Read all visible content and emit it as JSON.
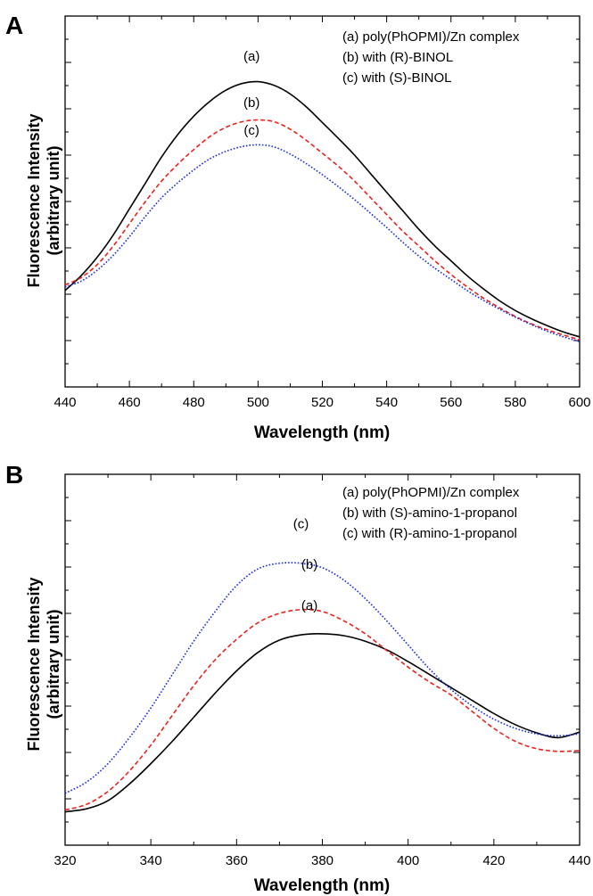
{
  "chart_data": [
    {
      "type": "line",
      "panel_label": "A",
      "xlabel": "Wavelength (nm)",
      "ylabel_line1": "Fluorescence Intensity",
      "ylabel_line2": "(arbitrary unit)",
      "xlim": [
        440,
        600
      ],
      "ylim": [
        0,
        100
      ],
      "xticks": [
        "440",
        "460",
        "480",
        "500",
        "520",
        "540",
        "560",
        "580",
        "600"
      ],
      "grid": false,
      "legend_position": "top-right",
      "legend": [
        "(a) poly(PhOPMI)/Zn complex",
        "(b) with (R)-BINOL",
        "(c) with (S)-BINOL"
      ],
      "series": [
        {
          "key": "a",
          "tag": "(a)",
          "color": "#000000",
          "style": "solid",
          "tag_at": [
            498,
            88
          ],
          "x": [
            440,
            445,
            450,
            455,
            460,
            465,
            470,
            475,
            480,
            485,
            490,
            495,
            500,
            505,
            510,
            515,
            520,
            525,
            530,
            535,
            540,
            545,
            550,
            555,
            560,
            565,
            570,
            575,
            580,
            585,
            590,
            595,
            600
          ],
          "values": [
            26,
            30,
            35,
            41,
            48,
            55,
            62,
            68,
            73,
            77,
            80,
            81.8,
            82.3,
            81.3,
            79,
            75.5,
            71.3,
            67,
            62.5,
            57.5,
            52.5,
            47.5,
            42.5,
            38,
            34,
            30,
            26.5,
            23.3,
            20.6,
            18.4,
            16.5,
            14.8,
            13.5
          ]
        },
        {
          "key": "b",
          "tag": "(b)",
          "color": "#e8231c",
          "style": "dashed",
          "tag_at": [
            498,
            75.5
          ],
          "x": [
            440,
            445,
            450,
            455,
            460,
            465,
            470,
            475,
            480,
            485,
            490,
            495,
            500,
            505,
            510,
            515,
            520,
            525,
            530,
            535,
            540,
            545,
            550,
            555,
            560,
            565,
            570,
            575,
            580,
            585,
            590,
            595,
            600
          ],
          "values": [
            27.5,
            29.5,
            33,
            38,
            44,
            50,
            55.5,
            60,
            64,
            67.5,
            70,
            71.5,
            72,
            71.5,
            69.5,
            66.5,
            63,
            59.5,
            55.5,
            51,
            46.5,
            42,
            38,
            34,
            30.3,
            27,
            24,
            21.4,
            19,
            17,
            15.4,
            14,
            12.7
          ]
        },
        {
          "key": "c",
          "tag": "(c)",
          "color": "#1a2be0",
          "style": "dotted",
          "tag_at": [
            498,
            68
          ],
          "x": [
            440,
            445,
            450,
            455,
            460,
            465,
            470,
            475,
            480,
            485,
            490,
            495,
            500,
            505,
            510,
            515,
            520,
            525,
            530,
            535,
            540,
            545,
            550,
            555,
            560,
            565,
            570,
            575,
            580,
            585,
            590,
            595,
            600
          ],
          "values": [
            27,
            28.5,
            31.5,
            35.5,
            40.5,
            46,
            51,
            55,
            58.5,
            61.5,
            63.5,
            64.8,
            65.3,
            64.7,
            62.8,
            60.2,
            57.2,
            54,
            50.5,
            46.8,
            43,
            39,
            35.3,
            32,
            29,
            26,
            23.4,
            21,
            18.8,
            16.8,
            15,
            13.5,
            12.2
          ]
        }
      ]
    },
    {
      "type": "line",
      "panel_label": "B",
      "xlabel": "Wavelength (nm)",
      "ylabel_line1": "Fluorescence Intensity",
      "ylabel_line2": "(arbitrary unit)",
      "xlim": [
        320,
        440
      ],
      "ylim": [
        0,
        100
      ],
      "xticks": [
        "320",
        "340",
        "360",
        "380",
        "400",
        "420",
        "440"
      ],
      "grid": false,
      "legend_position": "top-right",
      "legend": [
        "(a) poly(PhOPMI)/Zn complex",
        "(b) with (S)-amino-1-propanol",
        "(c) with (R)-amino-1-propanol"
      ],
      "series": [
        {
          "key": "a",
          "tag": "(a)",
          "color": "#000000",
          "style": "solid",
          "tag_at": [
            377,
            63.5
          ],
          "x": [
            320,
            325,
            330,
            335,
            340,
            345,
            350,
            355,
            360,
            365,
            370,
            375,
            380,
            385,
            390,
            395,
            400,
            405,
            410,
            415,
            420,
            425,
            430,
            435,
            440
          ],
          "values": [
            9,
            9.8,
            12,
            16.5,
            22,
            28,
            34.5,
            41,
            47,
            52,
            55.3,
            56.7,
            57,
            56.5,
            55,
            52.7,
            49.5,
            46,
            42.5,
            39,
            35.5,
            32.5,
            30.3,
            29,
            30.5
          ]
        },
        {
          "key": "b",
          "tag": "(b)",
          "color": "#e8231c",
          "style": "dashed",
          "tag_at": [
            377,
            74.5
          ],
          "x": [
            320,
            325,
            330,
            335,
            340,
            345,
            350,
            355,
            360,
            365,
            370,
            375,
            380,
            385,
            390,
            395,
            400,
            405,
            410,
            415,
            420,
            425,
            430,
            435,
            440
          ],
          "values": [
            9.5,
            11,
            14.5,
            20,
            27,
            35,
            43,
            50,
            55.5,
            60,
            62.5,
            63.5,
            63,
            60.5,
            57,
            52.5,
            48,
            44,
            40.5,
            36,
            31.5,
            28,
            26,
            25.3,
            25.5
          ]
        },
        {
          "key": "c",
          "tag": "(c)",
          "color": "#1a2be0",
          "style": "dotted",
          "tag_at": [
            375,
            85.5
          ],
          "x": [
            320,
            325,
            330,
            335,
            340,
            345,
            350,
            355,
            360,
            365,
            370,
            375,
            380,
            385,
            390,
            395,
            400,
            405,
            410,
            415,
            420,
            425,
            430,
            435,
            440
          ],
          "values": [
            14,
            17,
            22,
            29,
            37,
            46,
            55,
            63,
            70,
            74.5,
            76,
            76,
            74.8,
            71.5,
            66.5,
            60.5,
            54,
            47.5,
            42,
            37.5,
            34,
            31.5,
            30,
            29.5,
            30
          ]
        }
      ]
    }
  ]
}
